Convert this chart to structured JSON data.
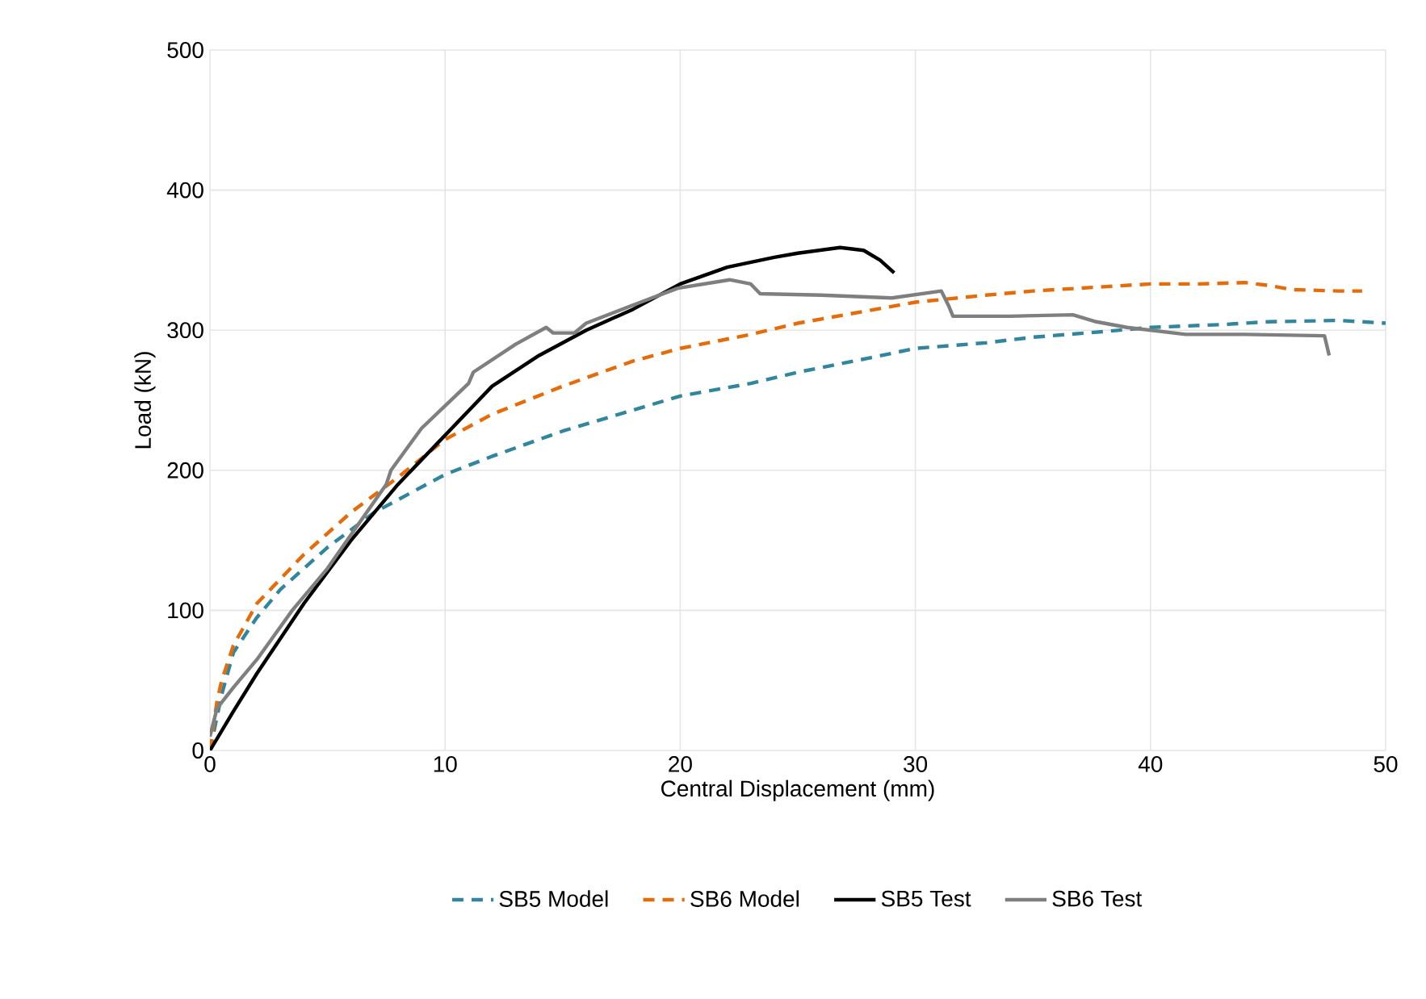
{
  "chart_data": {
    "type": "line",
    "xlabel": "Central Displacement (mm)",
    "ylabel": "Load (kN)",
    "xlim": [
      0,
      50
    ],
    "ylim": [
      0,
      500
    ],
    "xticks": [
      0,
      10,
      20,
      30,
      40,
      50
    ],
    "yticks": [
      0,
      100,
      200,
      300,
      400,
      500
    ],
    "grid": true,
    "legend": "bottom",
    "marker": "none",
    "series": [
      {
        "name": "SB5 Model",
        "color": "#31859c",
        "line_style": "dashed",
        "x": [
          0,
          0.5,
          1,
          2,
          3,
          5,
          7,
          10,
          12,
          15,
          18,
          20,
          23,
          25,
          28,
          30,
          33,
          35,
          38,
          40,
          43,
          45,
          48,
          50
        ],
        "values": [
          0,
          40,
          70,
          95,
          115,
          145,
          170,
          197,
          210,
          228,
          243,
          253,
          262,
          270,
          280,
          287,
          291,
          295,
          299,
          302,
          304,
          306,
          307,
          305
        ]
      },
      {
        "name": "SB6 Model",
        "color": "#e46c0a",
        "line_style": "dashed",
        "x": [
          0,
          0.3,
          0.5,
          1,
          2,
          4,
          6,
          8,
          10,
          12,
          15,
          18,
          20,
          23,
          25,
          28,
          30,
          33,
          35,
          38,
          40,
          42,
          44,
          45,
          46,
          48,
          49
        ],
        "values": [
          0,
          35,
          50,
          75,
          105,
          140,
          170,
          195,
          222,
          240,
          260,
          278,
          287,
          297,
          305,
          314,
          320,
          325,
          328,
          331,
          333,
          333,
          334,
          332,
          329,
          328,
          328
        ]
      },
      {
        "name": "SB5 Test",
        "color": "#000000",
        "line_style": "solid",
        "x": [
          0,
          1,
          2,
          4,
          6,
          8,
          10,
          12,
          14,
          16,
          18,
          20,
          22,
          24,
          25,
          26.8,
          27.8,
          28.5,
          29.1
        ],
        "values": [
          0,
          28,
          55,
          105,
          150,
          190,
          225,
          260,
          282,
          300,
          315,
          333,
          345,
          352,
          355,
          359,
          357,
          350,
          341
        ]
      },
      {
        "name": "SB6 Test",
        "color": "#7f7f7f",
        "line_style": "solid",
        "x": [
          0,
          0.3,
          1,
          2,
          3.5,
          5,
          7.5,
          7.7,
          9,
          11,
          11.2,
          13,
          14.3,
          14.6,
          15.5,
          16,
          18,
          19.9,
          21,
          22.1,
          23,
          23.4,
          26,
          29,
          31.1,
          31.4,
          31.6,
          34,
          36.7,
          37.7,
          39,
          41.5,
          44,
          47.4,
          47.6
        ],
        "values": [
          10,
          30,
          45,
          65,
          100,
          130,
          190,
          200,
          230,
          262,
          270,
          290,
          302,
          298,
          298,
          305,
          318,
          330,
          333,
          336,
          333,
          326,
          325,
          323,
          328,
          318,
          310,
          310,
          311,
          306,
          302,
          297,
          297,
          296,
          282
        ]
      }
    ]
  }
}
